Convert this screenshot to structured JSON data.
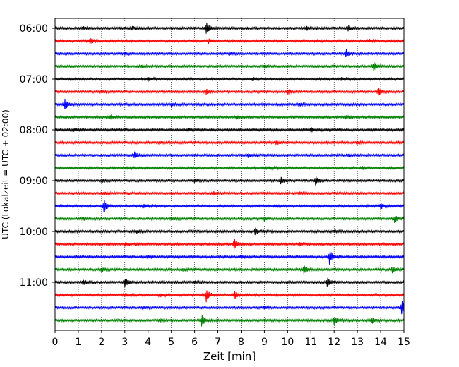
{
  "chart_data": {
    "type": "line",
    "title": "",
    "xlabel": "Zeit  [min]",
    "ylabel": "UTC (Lokalzeit = UTC + 02:00)",
    "xlim": [
      0,
      15
    ],
    "x_ticks": [
      "0",
      "1",
      "2",
      "3",
      "4",
      "5",
      "6",
      "7",
      "8",
      "9",
      "10",
      "11",
      "12",
      "13",
      "14",
      "15"
    ],
    "y_ticks": [
      "06:00",
      "07:00",
      "08:00",
      "09:00",
      "10:00",
      "11:00"
    ],
    "grid_x": true,
    "trace_interval_min": 15,
    "colors": {
      "black": "#000000",
      "red": "#ff0000",
      "blue": "#0000ff",
      "green": "#008000"
    },
    "color_cycle": [
      "black",
      "red",
      "blue",
      "green"
    ],
    "traces": [
      {
        "start": "06:00",
        "events": [
          [
            6.5,
            10
          ],
          [
            3.3,
            3
          ],
          [
            12.6,
            4
          ],
          [
            1.2,
            2
          ],
          [
            10.8,
            3
          ]
        ]
      },
      {
        "start": "06:15",
        "events": [
          [
            1.5,
            5
          ],
          [
            6.6,
            3
          ],
          [
            13.5,
            2
          ]
        ]
      },
      {
        "start": "06:30",
        "events": [
          [
            12.5,
            6
          ],
          [
            7.5,
            2
          ],
          [
            3.0,
            2
          ]
        ]
      },
      {
        "start": "06:45",
        "events": [
          [
            13.7,
            6
          ],
          [
            3.7,
            2
          ],
          [
            9.0,
            2
          ]
        ]
      },
      {
        "start": "07:00",
        "events": [
          [
            4.0,
            3
          ],
          [
            8.5,
            2
          ],
          [
            12.3,
            2
          ]
        ]
      },
      {
        "start": "07:15",
        "events": [
          [
            13.9,
            7
          ],
          [
            6.5,
            4
          ],
          [
            10.0,
            4
          ],
          [
            2.0,
            2
          ]
        ]
      },
      {
        "start": "07:30",
        "events": [
          [
            0.4,
            9
          ],
          [
            5.0,
            2
          ],
          [
            10.5,
            2
          ]
        ]
      },
      {
        "start": "07:45",
        "events": [
          [
            2.4,
            3
          ],
          [
            7.8,
            2
          ],
          [
            12.5,
            2
          ]
        ]
      },
      {
        "start": "08:00",
        "events": [
          [
            0.8,
            2
          ],
          [
            5.7,
            2
          ],
          [
            11.0,
            3
          ]
        ]
      },
      {
        "start": "08:15",
        "events": [
          [
            4.5,
            2
          ],
          [
            9.5,
            2
          ],
          [
            13.0,
            2
          ]
        ]
      },
      {
        "start": "08:30",
        "events": [
          [
            3.4,
            5
          ],
          [
            8.3,
            3
          ],
          [
            12.6,
            2
          ]
        ]
      },
      {
        "start": "08:45",
        "events": [
          [
            3.0,
            2
          ],
          [
            9.2,
            2
          ],
          [
            13.2,
            2
          ]
        ]
      },
      {
        "start": "09:00",
        "events": [
          [
            9.7,
            5
          ],
          [
            11.2,
            7
          ],
          [
            6.0,
            2
          ],
          [
            2.0,
            2
          ]
        ]
      },
      {
        "start": "09:15",
        "events": [
          [
            2.1,
            2
          ],
          [
            6.8,
            2
          ],
          [
            10.5,
            2
          ]
        ]
      },
      {
        "start": "09:30",
        "events": [
          [
            2.1,
            10
          ],
          [
            3.8,
            3
          ],
          [
            14.0,
            4
          ],
          [
            9.5,
            2
          ]
        ]
      },
      {
        "start": "09:45",
        "events": [
          [
            14.6,
            5
          ],
          [
            9.0,
            3
          ],
          [
            5.0,
            2
          ],
          [
            1.2,
            2
          ]
        ]
      },
      {
        "start": "10:00",
        "events": [
          [
            8.6,
            5
          ],
          [
            3.5,
            2
          ],
          [
            12.0,
            2
          ]
        ]
      },
      {
        "start": "10:15",
        "events": [
          [
            7.7,
            8
          ],
          [
            3.0,
            2
          ],
          [
            10.5,
            2
          ]
        ]
      },
      {
        "start": "10:30",
        "events": [
          [
            11.8,
            10
          ],
          [
            4.0,
            2
          ],
          [
            8.0,
            2
          ]
        ]
      },
      {
        "start": "10:45",
        "events": [
          [
            10.7,
            7
          ],
          [
            14.5,
            4
          ],
          [
            2.0,
            3
          ],
          [
            5.5,
            2
          ]
        ]
      },
      {
        "start": "11:00",
        "events": [
          [
            3.0,
            7
          ],
          [
            11.7,
            7
          ],
          [
            1.2,
            4
          ],
          [
            6.0,
            2
          ]
        ]
      },
      {
        "start": "11:15",
        "events": [
          [
            6.5,
            9
          ],
          [
            7.7,
            6
          ],
          [
            3.0,
            3
          ],
          [
            4.5,
            3
          ]
        ]
      },
      {
        "start": "11:30",
        "events": [
          [
            14.9,
            11
          ],
          [
            3.8,
            2
          ],
          [
            9.0,
            2
          ]
        ]
      },
      {
        "start": "11:45",
        "events": [
          [
            6.3,
            8
          ],
          [
            12.0,
            6
          ],
          [
            13.6,
            5
          ],
          [
            4.5,
            2
          ]
        ]
      }
    ]
  }
}
